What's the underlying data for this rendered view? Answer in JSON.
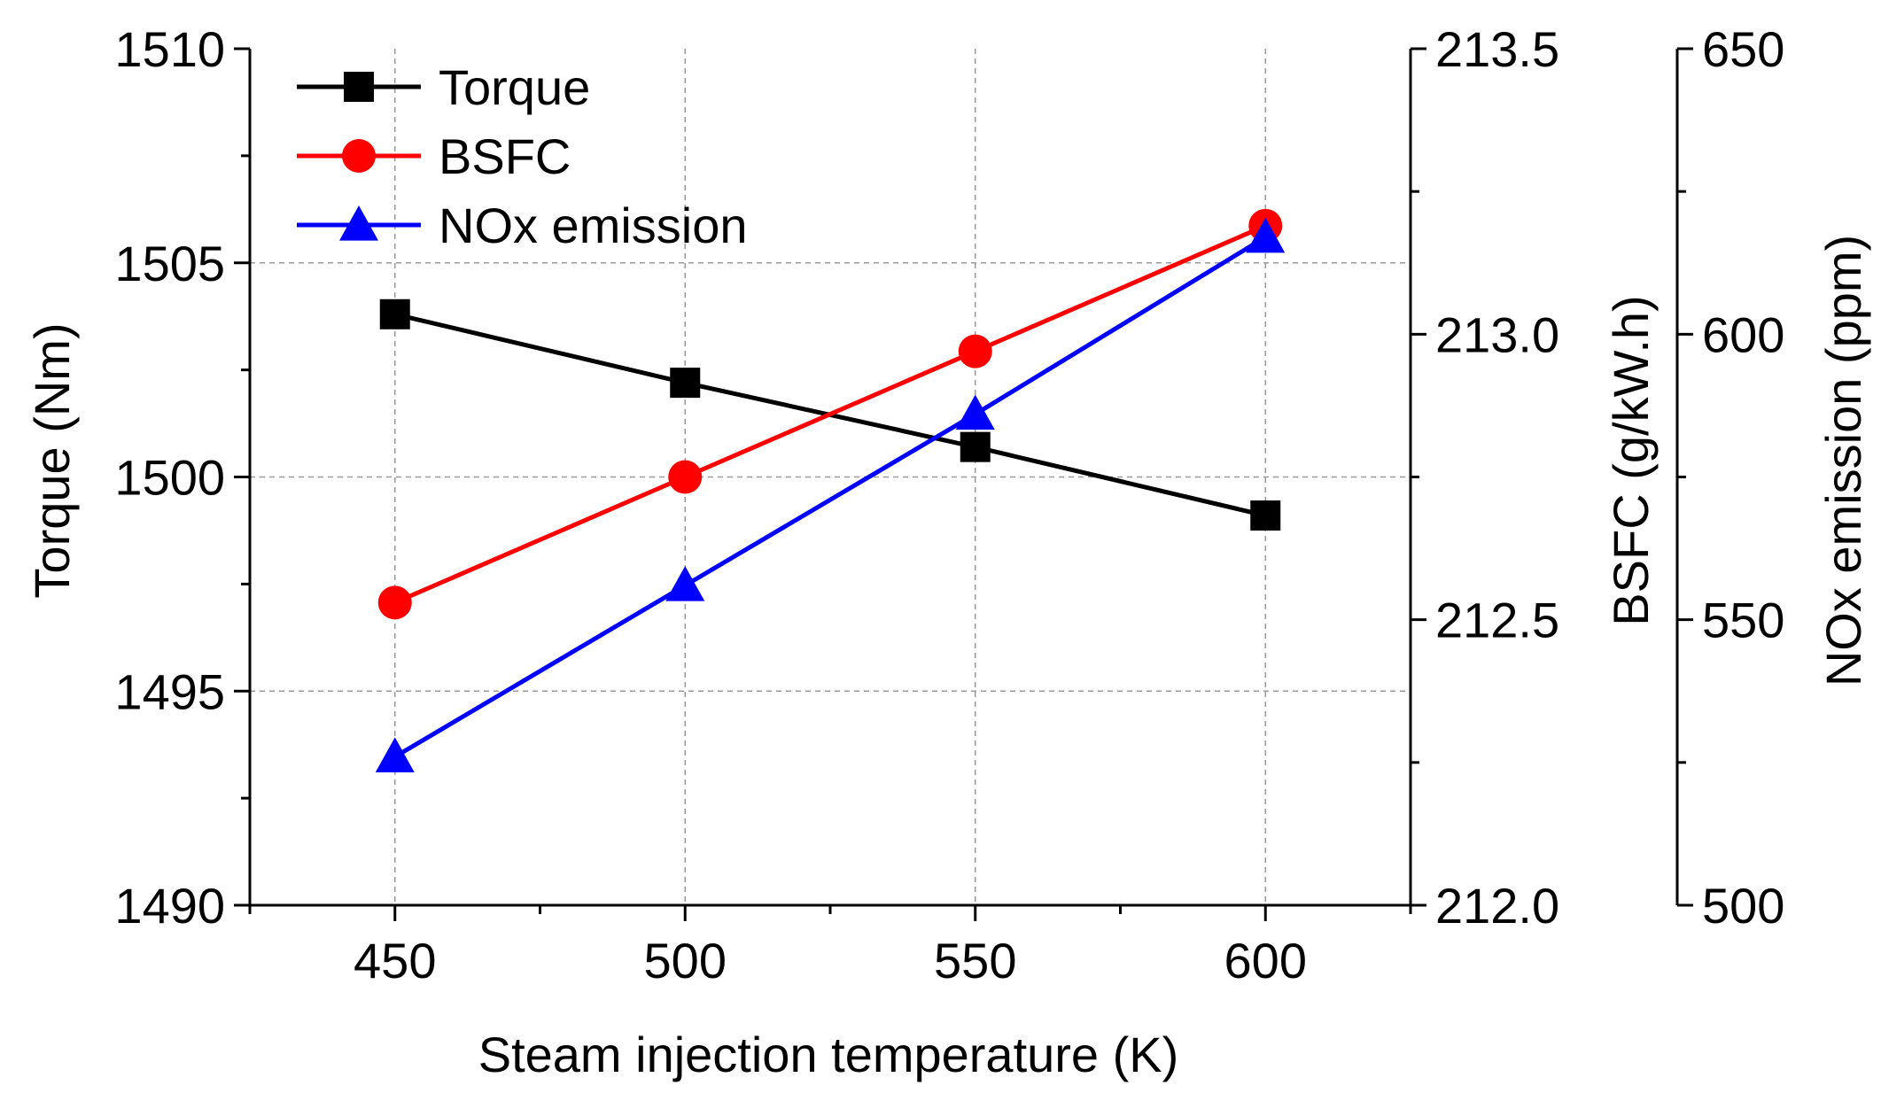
{
  "chart_data": {
    "type": "line",
    "xlabel": "Steam injection temperature (K)",
    "x": [
      450,
      500,
      550,
      600
    ],
    "xlim": [
      425,
      625
    ],
    "xticks": [
      450,
      500,
      550,
      600
    ],
    "grid": true,
    "legend_position": "top-left",
    "axes": {
      "torque": {
        "label": "Torque (Nm)",
        "ylim": [
          1490,
          1510
        ],
        "ticks": [
          1490,
          1495,
          1500,
          1505,
          1510
        ],
        "tick_labels": [
          "1490",
          "1495",
          "1500",
          "1505",
          "1510"
        ]
      },
      "bsfc": {
        "label": "BSFC (g/kW.h)",
        "ylim": [
          212.0,
          213.5
        ],
        "ticks": [
          212.0,
          212.5,
          213.0,
          213.5
        ],
        "tick_labels": [
          "212.0",
          "212.5",
          "213.0",
          "213.5"
        ]
      },
      "nox": {
        "label": "NOx emission (ppm)",
        "ylim": [
          500,
          650
        ],
        "ticks": [
          500,
          550,
          600,
          650
        ],
        "tick_labels": [
          "500",
          "550",
          "600",
          "650"
        ]
      }
    },
    "series": [
      {
        "name": "Torque",
        "axis": "torque",
        "marker": "square",
        "color": "#000000",
        "values": [
          1503.8,
          1502.2,
          1500.7,
          1499.1
        ]
      },
      {
        "name": "BSFC",
        "axis": "bsfc",
        "marker": "circle",
        "color": "#ff0000",
        "values": [
          212.53,
          212.75,
          212.97,
          213.19
        ]
      },
      {
        "name": "NOx emission",
        "axis": "nox",
        "marker": "triangle",
        "color": "#0000ff",
        "values": [
          526,
          556,
          586,
          617
        ]
      }
    ]
  }
}
